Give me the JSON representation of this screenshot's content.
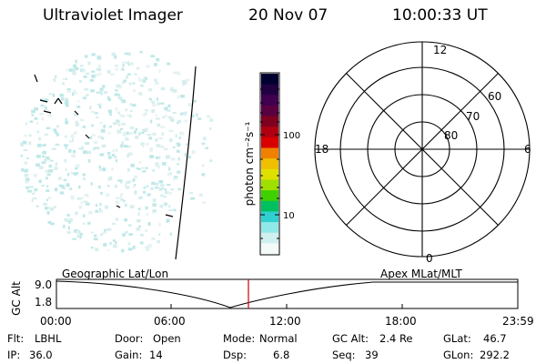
{
  "header": {
    "instrument": "Ultraviolet Imager",
    "date": "20 Nov 07",
    "time": "10:00:33 UT"
  },
  "colorbar": {
    "label": "photon cm⁻²s⁻¹",
    "ticks": [
      "100",
      "10"
    ],
    "colors": [
      "#000030",
      "#200040",
      "#400050",
      "#5a0040",
      "#800020",
      "#b00010",
      "#d80000",
      "#f08000",
      "#f0c000",
      "#e0e000",
      "#a0e000",
      "#40d000",
      "#00c060",
      "#30d0d0",
      "#90e8e8",
      "#d0f0f0",
      "#f4fafa"
    ]
  },
  "polar_plot": {
    "mlt_labels": [
      "12",
      "18",
      "6",
      "0"
    ],
    "lat_labels": [
      "60",
      "70",
      "80"
    ]
  },
  "timeline": {
    "left_title": "Geographic Lat/Lon",
    "right_title": "Apex  MLat/MLT",
    "y_axis_label": "GC Alt",
    "y_ticks": [
      "9.0",
      "1.8"
    ],
    "x_ticks": [
      "00:00",
      "06:00",
      "12:00",
      "18:00",
      "23:59"
    ],
    "marker_color": "#cc0000"
  },
  "info": {
    "flt_label": "Flt:",
    "flt_value": "LBHL",
    "door_label": "Door:",
    "door_value": "Open",
    "mode_label": "Mode:",
    "mode_value": "Normal",
    "gcalt_label": "GC Alt:",
    "gcalt_value": "2.4 Re",
    "glat_label": "GLat:",
    "glat_value": "46.7",
    "ip_label": "IP:",
    "ip_value": "36.0",
    "gain_label": "Gain:",
    "gain_value": "14",
    "dsp_label": "Dsp:",
    "dsp_value": "6.8",
    "seq_label": "Seq:",
    "seq_value": "39",
    "glon_label": "GLon:",
    "glon_value": "292.2"
  }
}
